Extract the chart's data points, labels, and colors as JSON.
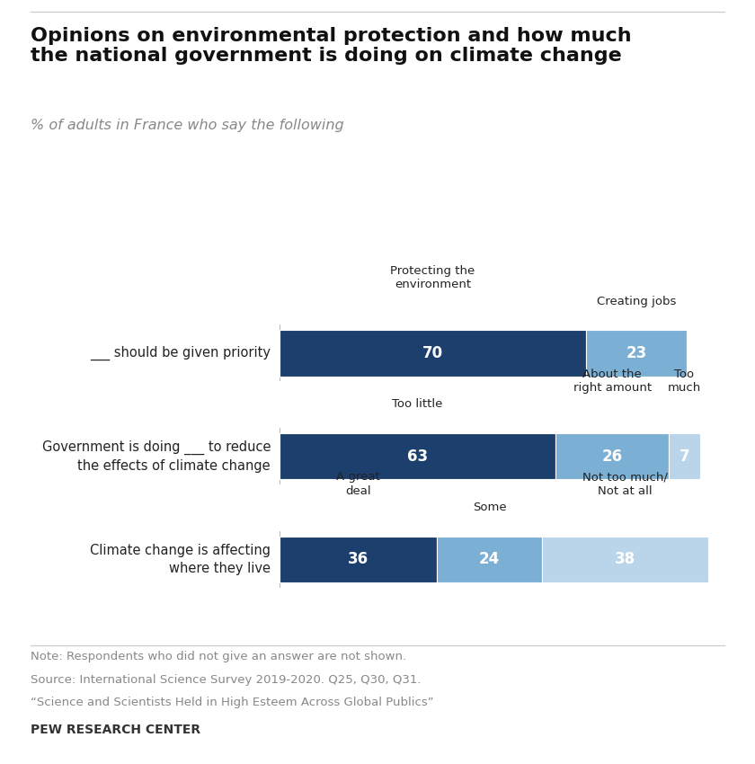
{
  "title": "Opinions on environmental protection and how much\nthe national government is doing on climate change",
  "subtitle": "% of adults in France who say the following",
  "rows": [
    {
      "label": "___ should be given priority",
      "segments": [
        70,
        23
      ],
      "colors": [
        "#1c3f6e",
        "#7bafd4"
      ],
      "seg_labels": [
        "70",
        "23"
      ],
      "header_labels": [
        {
          "text": "Protecting the\nenvironment",
          "seg_idx": 0,
          "ha": "center"
        },
        {
          "text": "Creating jobs",
          "seg_idx": 1,
          "ha": "center"
        }
      ]
    },
    {
      "label": "Government is doing ___ to reduce\nthe effects of climate change",
      "segments": [
        63,
        26,
        7
      ],
      "colors": [
        "#1c3f6e",
        "#7bafd4",
        "#bad4ea"
      ],
      "seg_labels": [
        "63",
        "26",
        "7"
      ],
      "header_labels": [
        {
          "text": "Too little",
          "seg_idx": 0,
          "ha": "center"
        },
        {
          "text": "About the\nright amount",
          "seg_idx": 1,
          "ha": "center"
        },
        {
          "text": "Too\nmuch",
          "seg_idx": 2,
          "ha": "center"
        }
      ]
    },
    {
      "label": "Climate change is affecting\nwhere they live",
      "segments": [
        36,
        24,
        38
      ],
      "colors": [
        "#1c3f6e",
        "#7bafd4",
        "#bad4ea"
      ],
      "seg_labels": [
        "36",
        "24",
        "38"
      ],
      "header_labels": [
        {
          "text": "A great\ndeal",
          "seg_idx": 0,
          "ha": "center"
        },
        {
          "text": "Some",
          "seg_idx": 1,
          "ha": "center"
        },
        {
          "text": "Not too much/\nNot at all",
          "seg_idx": 2,
          "ha": "center"
        }
      ]
    }
  ],
  "note_lines": [
    "Note: Respondents who did not give an answer are not shown.",
    "Source: International Science Survey 2019-2020. Q25, Q30, Q31.",
    "“Science and Scientists Held in High Esteem Across Global Publics”"
  ],
  "footer": "PEW RESEARCH CENTER",
  "bg_color": "#ffffff",
  "note_color": "#888888",
  "label_color": "#222222"
}
